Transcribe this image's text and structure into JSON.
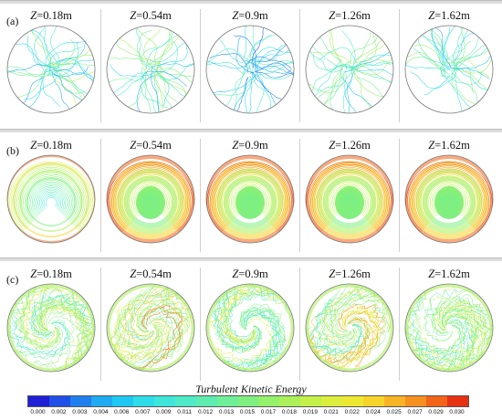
{
  "panels": [
    {
      "label": "(a)",
      "style": "a",
      "z_labels": [
        "0.18m",
        "0.54m",
        "0.9m",
        "1.26m",
        "1.62m"
      ]
    },
    {
      "label": "(b)",
      "style": "b",
      "z_labels": [
        "0.18m",
        "0.54m",
        "0.9m",
        "1.26m",
        "1.62m"
      ]
    },
    {
      "label": "(c)",
      "style": "c",
      "z_labels": [
        "0.18m",
        "0.54m",
        "0.9m",
        "1.26m",
        "1.62m"
      ]
    }
  ],
  "z_prefix": "Z",
  "colorbar": {
    "title": "Turbulent Kinetic Energy",
    "ticks": [
      "0.000",
      "0.002",
      "0.003",
      "0.004",
      "0.006",
      "0.007",
      "0.009",
      "0.011",
      "0.012",
      "0.013",
      "0.015",
      "0.017",
      "0.018",
      "0.019",
      "0.021",
      "0.022",
      "0.024",
      "0.025",
      "0.027",
      "0.029",
      "0.030"
    ],
    "colors": [
      "#1f1fd6",
      "#1f4fe6",
      "#1f7fee",
      "#1faaf2",
      "#1fc8f2",
      "#2fdcea",
      "#3fe6da",
      "#4feac8",
      "#5fecb0",
      "#6fef98",
      "#7ff080",
      "#95f06a",
      "#acf05a",
      "#c4f04a",
      "#dcee3c",
      "#eee832",
      "#f6d42a",
      "#f8b424",
      "#f6901e",
      "#f26418",
      "#e83012"
    ]
  }
}
